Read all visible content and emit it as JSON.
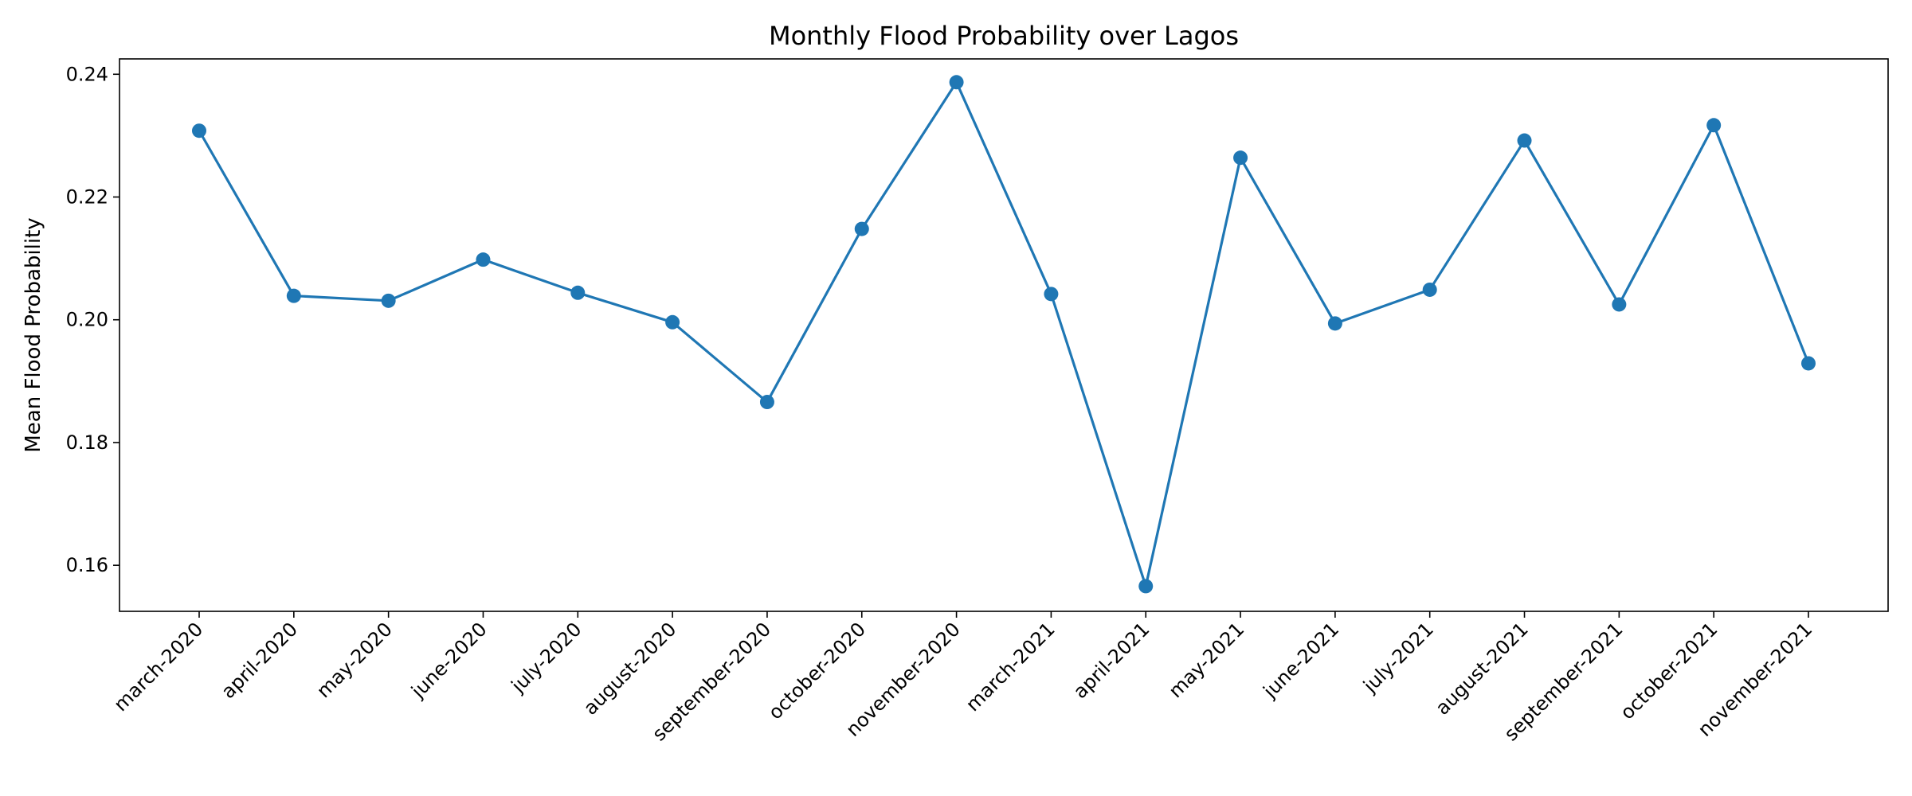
{
  "colors": {
    "series": "#1f77b4",
    "axes": "#000000",
    "background": "#ffffff"
  },
  "chart_data": {
    "type": "line",
    "title": "Monthly Flood Probability over Lagos",
    "xlabel": "",
    "ylabel": "Mean Flood Probability",
    "ylim": [
      0.1525,
      0.2425
    ],
    "yticks": [
      0.16,
      0.18,
      0.2,
      0.22,
      0.24
    ],
    "ytick_labels": [
      "0.16",
      "0.18",
      "0.20",
      "0.22",
      "0.24"
    ],
    "grid": false,
    "marker": "circle",
    "categories": [
      "march-2020",
      "april-2020",
      "may-2020",
      "june-2020",
      "july-2020",
      "august-2020",
      "september-2020",
      "october-2020",
      "november-2020",
      "march-2021",
      "april-2021",
      "may-2021",
      "june-2021",
      "july-2021",
      "august-2021",
      "september-2021",
      "october-2021",
      "november-2021"
    ],
    "series": [
      {
        "values": [
          0.2308,
          0.2039,
          0.2031,
          0.2098,
          0.2044,
          0.1996,
          0.1866,
          0.2148,
          0.2387,
          0.2042,
          0.1566,
          0.2264,
          0.1994,
          0.2049,
          0.2292,
          0.2025,
          0.2317,
          0.1929
        ]
      }
    ]
  }
}
